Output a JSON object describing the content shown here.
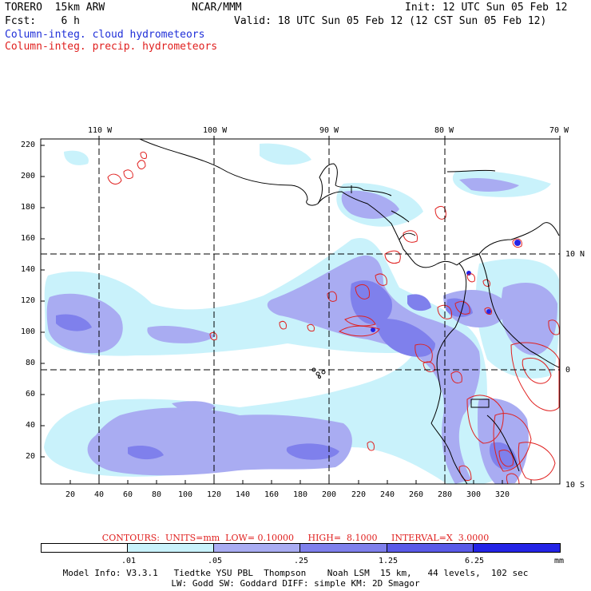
{
  "header": {
    "model": "TORERO  15km ARW",
    "org": "NCAR/MMM",
    "init": "Init: 12 UTC Sun 05 Feb 12",
    "fcst": "Fcst:    6 h",
    "valid": "Valid: 18 UTC Sun 05 Feb 12 (12 CST Sun 05 Feb 12)",
    "field_cloud": "Column-integ. cloud hydrometeors",
    "field_precip": "Column-integ. precip. hydrometeors"
  },
  "map": {
    "lon_labels": [
      "110 W",
      "100 W",
      "90 W",
      "80 W",
      "70 W"
    ],
    "lat_labels": [
      "10 N",
      "0",
      "10 S"
    ],
    "y_ticks": [
      "220",
      "200",
      "180",
      "160",
      "140",
      "120",
      "100",
      "80",
      "60",
      "40",
      "20"
    ],
    "x_ticks": [
      "20",
      "40",
      "60",
      "80",
      "100",
      "120",
      "140",
      "160",
      "180",
      "200",
      "220",
      "240",
      "260",
      "280",
      "300",
      "320"
    ]
  },
  "colorbar": {
    "colors": [
      "#ffffff",
      "#c9f2fb",
      "#a9acf2",
      "#7f80ec",
      "#5a5ae8",
      "#2323e6"
    ],
    "labels": [
      ".01",
      ".05",
      ".25",
      "1.25",
      "6.25"
    ],
    "units": "mm",
    "contour_color": "#e0201f",
    "coast_color": "#000000"
  },
  "contours_caption": "CONTOURS:  UNITS=mm  LOW= 0.10000     HIGH=  8.1000     INTERVAL=X  3.0000",
  "model_info": {
    "line1": "Model Info: V3.3.1   Tiedtke YSU PBL  Thompson    Noah LSM  15 km,   44 levels,  102 sec",
    "line2": "LW: Godd SW: Goddard DIFF: simple KM: 2D Smagor"
  }
}
